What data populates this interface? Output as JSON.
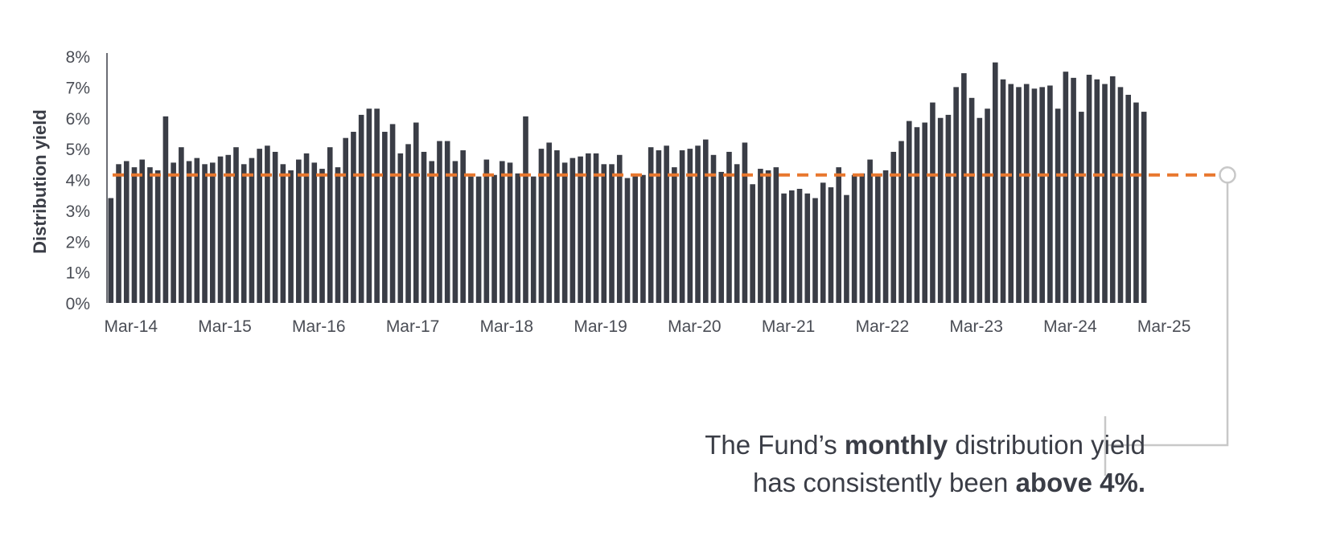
{
  "chart_data": {
    "type": "bar",
    "ylabel": "Distribution yield",
    "ylim": [
      0,
      8
    ],
    "yticks": [
      "0%",
      "1%",
      "2%",
      "3%",
      "4%",
      "5%",
      "6%",
      "7%",
      "8%"
    ],
    "xtick_labels": [
      "Mar-14",
      "Mar-15",
      "Mar-16",
      "Mar-17",
      "Mar-18",
      "Mar-19",
      "Mar-20",
      "Mar-21",
      "Mar-22",
      "Mar-23",
      "Mar-24",
      "Mar-25"
    ],
    "bar_color": "#3a3d46",
    "reference_line": {
      "value": 4.15,
      "color": "#e8772e",
      "style": "dashed"
    },
    "callout_line_color": "#c8c8c8",
    "values": [
      3.4,
      4.5,
      4.6,
      4.4,
      4.65,
      4.4,
      4.3,
      6.05,
      4.55,
      5.05,
      4.6,
      4.7,
      4.5,
      4.55,
      4.75,
      4.8,
      5.05,
      4.5,
      4.7,
      5.0,
      5.1,
      4.9,
      4.5,
      4.3,
      4.65,
      4.85,
      4.55,
      4.35,
      5.05,
      4.4,
      5.35,
      5.55,
      6.1,
      6.3,
      6.3,
      5.55,
      5.8,
      4.85,
      5.15,
      5.85,
      4.9,
      4.6,
      5.25,
      5.25,
      4.6,
      4.95,
      4.1,
      4.1,
      4.65,
      4.15,
      4.6,
      4.55,
      4.2,
      6.05,
      4.1,
      5.0,
      5.2,
      4.95,
      4.55,
      4.7,
      4.75,
      4.85,
      4.85,
      4.5,
      4.5,
      4.8,
      4.05,
      4.15,
      4.15,
      5.05,
      4.95,
      5.1,
      4.4,
      4.95,
      5.0,
      5.1,
      5.3,
      4.8,
      4.25,
      4.9,
      4.5,
      5.2,
      3.85,
      4.35,
      4.3,
      4.4,
      3.55,
      3.65,
      3.7,
      3.55,
      3.4,
      3.9,
      3.75,
      4.4,
      3.5,
      4.15,
      4.2,
      4.65,
      4.15,
      4.3,
      4.9,
      5.25,
      5.9,
      5.7,
      5.85,
      6.5,
      6.0,
      6.1,
      7.0,
      7.45,
      6.65,
      6.0,
      6.3,
      7.8,
      7.25,
      7.1,
      7.0,
      7.1,
      6.95,
      7.0,
      7.05,
      6.3,
      7.5,
      7.3,
      6.2,
      7.4,
      7.25,
      7.1,
      7.35,
      7.0,
      6.75,
      6.5,
      6.2
    ]
  },
  "callout": {
    "line1_a": "The Fund’s ",
    "line1_b": "monthly",
    "line1_c": " distribution yield",
    "line2_a": "has consistently been ",
    "line2_b": "above 4%."
  }
}
